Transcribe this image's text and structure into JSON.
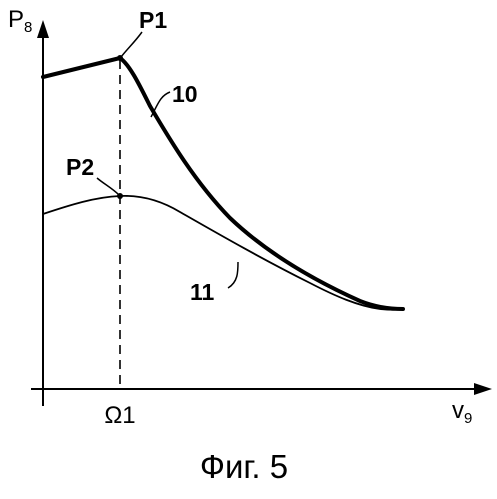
{
  "figure": {
    "caption": "Фиг. 5",
    "y_axis": {
      "label": "P",
      "subscript": "8"
    },
    "x_axis": {
      "label": "v",
      "subscript": "9"
    },
    "x_marker": "Ω1",
    "points": {
      "p1": "P1",
      "p2": "P2"
    },
    "curves": {
      "curve_10": "10",
      "curve_11": "11"
    },
    "colors": {
      "ink": "#000000",
      "background": "#ffffff"
    }
  }
}
